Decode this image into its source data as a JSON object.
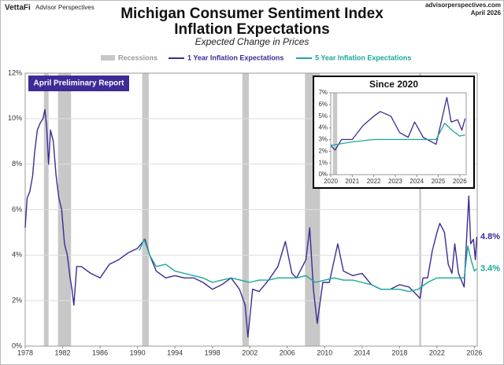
{
  "header": {
    "brand": "VettaFi",
    "brand_sub": "Advisor Perspectives",
    "site": "advisorperspectives.com",
    "date": "April 2026"
  },
  "chart_data": [
    {
      "type": "line",
      "title": "Michigan Consumer Sentiment Index",
      "title2": "Inflation Expectations",
      "subtitle": "Expected Change in Prices",
      "badge": "April Preliminary Report",
      "xlim": [
        1978,
        2026.3
      ],
      "xticks": [
        1978,
        1982,
        1986,
        1990,
        1994,
        1998,
        2002,
        2006,
        2010,
        2014,
        2018,
        2022,
        2026
      ],
      "ylim": [
        0,
        12
      ],
      "yticks": [
        {
          "value": 0,
          "label": "0%"
        },
        {
          "value": 2,
          "label": "2%"
        },
        {
          "value": 4,
          "label": "4%"
        },
        {
          "value": 6,
          "label": "6%"
        },
        {
          "value": 8,
          "label": "8%"
        },
        {
          "value": 10,
          "label": "10%"
        },
        {
          "value": 12,
          "label": "12%"
        }
      ],
      "grid": true,
      "recessions": {
        "name": "Recessions",
        "color": "#c8c8c8",
        "spans": [
          [
            1980.0,
            1980.5
          ],
          [
            1981.5,
            1982.9
          ],
          [
            1990.5,
            1991.2
          ],
          [
            2001.2,
            2001.9
          ],
          [
            2007.9,
            2009.5
          ],
          [
            2020.1,
            2020.3
          ]
        ]
      },
      "series": [
        {
          "name": "1 Year Inflation Expectations",
          "color": "#3f2a96",
          "x": [
            1978.0,
            1978.2,
            1978.5,
            1978.8,
            1979.0,
            1979.3,
            1979.6,
            1979.9,
            1980.1,
            1980.3,
            1980.5,
            1980.7,
            1981.0,
            1981.3,
            1981.6,
            1981.9,
            1982.2,
            1982.5,
            1982.8,
            1983.0,
            1983.2,
            1983.5,
            1984,
            1985,
            1986,
            1987,
            1988,
            1989,
            1990,
            1990.8,
            1991.3,
            1992,
            1993,
            1994,
            1995,
            1996,
            1997,
            1998,
            1999,
            2000,
            2000.9,
            2001.5,
            2001.8,
            2002.3,
            2003,
            2004,
            2005,
            2005.8,
            2006.5,
            2007,
            2008,
            2008.4,
            2008.8,
            2009.2,
            2009.8,
            2010.5,
            2011.4,
            2012,
            2013,
            2014,
            2015,
            2016,
            2017,
            2018,
            2019,
            2020.2,
            2020.5,
            2021,
            2021.5,
            2022,
            2022.3,
            2022.8,
            2023.2,
            2023.6,
            2023.9,
            2024.3,
            2024.9,
            2025.2,
            2025.4,
            2025.6,
            2025.9,
            2026.1,
            2026.25
          ],
          "values": [
            5.2,
            6.5,
            6.8,
            7.5,
            8.5,
            9.5,
            9.8,
            10.0,
            10.4,
            9.6,
            8.0,
            9.5,
            9.0,
            7.5,
            6.5,
            6.0,
            4.5,
            4.0,
            3.0,
            2.5,
            1.8,
            3.5,
            3.5,
            3.2,
            3.0,
            3.6,
            3.8,
            4.1,
            4.3,
            4.7,
            4.0,
            3.3,
            3.0,
            3.1,
            3.0,
            3.0,
            2.8,
            2.5,
            2.7,
            3.0,
            2.5,
            1.8,
            0.4,
            2.5,
            2.4,
            2.9,
            3.5,
            4.6,
            3.2,
            3.0,
            3.8,
            5.2,
            2.5,
            1.0,
            2.8,
            2.8,
            4.5,
            3.3,
            3.1,
            3.2,
            2.7,
            2.5,
            2.5,
            2.7,
            2.6,
            2.1,
            3.0,
            3.0,
            4.2,
            5.0,
            5.4,
            5.0,
            3.6,
            3.2,
            4.5,
            3.2,
            2.6,
            5.0,
            6.6,
            4.5,
            4.7,
            3.8,
            4.8
          ]
        },
        {
          "name": "5 Year Inflation Expectations",
          "color": "#1aa89a",
          "x": [
            1990.2,
            1990.7,
            1991.3,
            1992,
            1993,
            1994,
            1995,
            1996,
            1997,
            1998,
            1999,
            2000,
            2001,
            2002,
            2003,
            2004,
            2005,
            2006,
            2007,
            2008,
            2009,
            2010,
            2011,
            2012,
            2013,
            2014,
            2015,
            2016,
            2017,
            2018,
            2019,
            2020,
            2021,
            2022,
            2023,
            2024,
            2024.9,
            2025.3,
            2025.7,
            2026,
            2026.25
          ],
          "values": [
            4.2,
            4.7,
            4.0,
            3.5,
            3.6,
            3.3,
            3.2,
            3.1,
            3.0,
            2.8,
            2.9,
            3.0,
            2.9,
            2.8,
            2.9,
            2.9,
            3.0,
            3.0,
            3.0,
            3.1,
            2.8,
            2.9,
            3.0,
            2.9,
            2.9,
            2.8,
            2.7,
            2.5,
            2.5,
            2.5,
            2.4,
            2.5,
            2.8,
            3.0,
            3.0,
            3.0,
            3.0,
            4.4,
            3.7,
            3.3,
            3.4
          ]
        }
      ],
      "annotations": [
        {
          "text": "4.8%",
          "value": 4.8,
          "color": "#3f2a96"
        },
        {
          "text": "3.4%",
          "value": 3.4,
          "color": "#1aa89a"
        }
      ]
    },
    {
      "type": "line",
      "title": "Since 2020",
      "xlim": [
        2020,
        2026.3
      ],
      "xticks": [
        2020,
        2021,
        2022,
        2023,
        2024,
        2025,
        2026
      ],
      "ylim": [
        0,
        7
      ],
      "yticks": [
        {
          "value": 0,
          "label": "0%"
        },
        {
          "value": 1,
          "label": "1%"
        },
        {
          "value": 2,
          "label": "2%"
        },
        {
          "value": 3,
          "label": "3%"
        },
        {
          "value": 4,
          "label": "4%"
        },
        {
          "value": 5,
          "label": "5%"
        },
        {
          "value": 6,
          "label": "6%"
        },
        {
          "value": 7,
          "label": "7%"
        }
      ],
      "grid": false,
      "recessions": {
        "color": "#c8c8c8",
        "spans": [
          [
            2020.1,
            2020.3
          ]
        ]
      },
      "series": [
        {
          "color": "#3f2a96",
          "x": [
            2020.0,
            2020.2,
            2020.5,
            2021,
            2021.5,
            2022,
            2022.3,
            2022.8,
            2023.2,
            2023.6,
            2023.9,
            2024.3,
            2024.9,
            2025.2,
            2025.4,
            2025.6,
            2025.9,
            2026.1,
            2026.25
          ],
          "values": [
            2.5,
            2.1,
            3.0,
            3.0,
            4.2,
            5.0,
            5.4,
            5.0,
            3.6,
            3.2,
            4.5,
            3.2,
            2.6,
            5.0,
            6.6,
            4.5,
            4.7,
            3.8,
            4.8
          ]
        },
        {
          "color": "#1aa89a",
          "x": [
            2020,
            2021,
            2022,
            2023,
            2024,
            2024.9,
            2025.3,
            2025.7,
            2026,
            2026.25
          ],
          "values": [
            2.5,
            2.8,
            3.0,
            3.0,
            3.0,
            3.0,
            4.4,
            3.7,
            3.3,
            3.4
          ]
        }
      ]
    }
  ]
}
